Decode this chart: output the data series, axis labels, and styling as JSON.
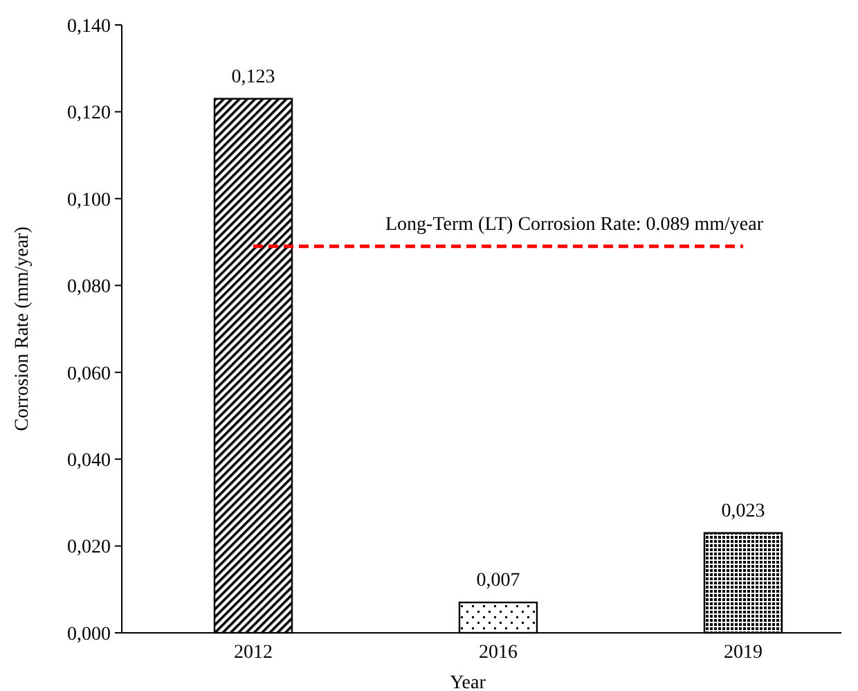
{
  "chart_data": {
    "type": "bar",
    "xlabel": "Year",
    "ylabel": "Corrosion Rate (mm/year)",
    "categories": [
      "2012",
      "2016",
      "2019"
    ],
    "values": [
      0.123,
      0.007,
      0.023
    ],
    "value_labels": [
      "0,123",
      "0,007",
      "0,023"
    ],
    "colors": [
      "#000000",
      "#000000",
      "#000000"
    ],
    "ylim": [
      0,
      0.14
    ],
    "yticks": [
      {
        "value": 0,
        "label": "0,000"
      },
      {
        "value": 0.02,
        "label": "0,020"
      },
      {
        "value": 0.04,
        "label": "0,040"
      },
      {
        "value": 0.06,
        "label": "0,060"
      },
      {
        "value": 0.08,
        "label": "0,080"
      },
      {
        "value": 0.1,
        "label": "0,100"
      },
      {
        "value": 0.12,
        "label": "0,120"
      },
      {
        "value": 0.14,
        "label": "0,140"
      }
    ],
    "ref_lines": [
      {
        "axis": "y",
        "value": 0.089,
        "label": "Long-Term (LT) Corrosion Rate: 0.089 mm/year",
        "color": "#ff0000",
        "line_style": "dashed"
      }
    ],
    "grid": false
  }
}
